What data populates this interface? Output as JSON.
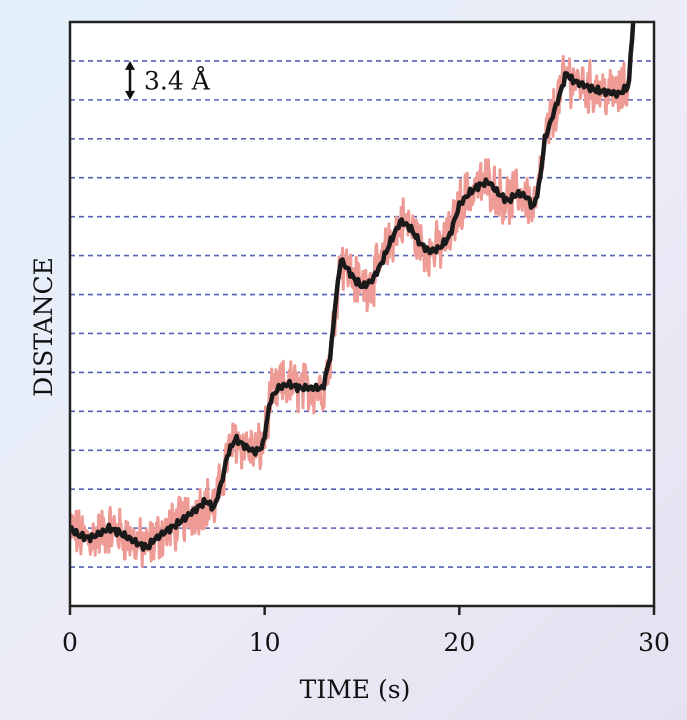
{
  "chart_data": {
    "type": "line",
    "title": "",
    "xlabel": "TIME (s)",
    "ylabel": "DISTANCE",
    "xlim": [
      0,
      30
    ],
    "xticks": [
      "0",
      "10",
      "20",
      "30"
    ],
    "ylim": [
      -1.0,
      14.0
    ],
    "y_tick_labels_shown": false,
    "grid": "horizontal dashed lines spaced one 3.4 Å step apart",
    "gridline_levels": [
      0,
      1,
      2,
      3,
      4,
      5,
      6,
      7,
      8,
      9,
      10,
      11,
      12,
      13
    ],
    "annotation": {
      "text": "3.4 Å",
      "spans_levels": [
        12,
        13
      ]
    },
    "legend": "none",
    "colors": {
      "raw": "#ef9b95",
      "filtered": "#1a1a1a",
      "grid": "#5562b8",
      "axes": "#222222"
    },
    "y_units": "base-pair steps (1 step = 3.4 Å)",
    "series": [
      {
        "color": "raw",
        "noise_amplitude": 0.55
      },
      {
        "color": "filtered",
        "x": [
          0,
          0.5,
          1.0,
          1.5,
          2.0,
          2.5,
          3.0,
          3.5,
          4.0,
          4.3,
          4.6,
          5.0,
          5.5,
          6.0,
          6.5,
          7.0,
          7.4,
          7.8,
          8.1,
          8.5,
          9.0,
          9.5,
          9.9,
          10.3,
          10.7,
          11.2,
          11.8,
          12.4,
          13.0,
          13.4,
          13.6,
          13.9,
          14.2,
          14.6,
          15.0,
          15.5,
          16.0,
          16.5,
          17.0,
          17.5,
          18.0,
          18.5,
          19.0,
          19.5,
          20.0,
          20.5,
          21.0,
          21.5,
          22.0,
          22.5,
          23.0,
          23.5,
          23.8,
          24.1,
          24.4,
          24.8,
          25.2,
          25.5,
          25.8,
          26.3,
          27.0,
          27.6,
          28.2,
          28.7,
          28.95
        ],
        "y": [
          1.0,
          0.8,
          0.75,
          0.85,
          1.0,
          0.9,
          0.75,
          0.6,
          0.5,
          0.7,
          0.8,
          0.95,
          1.1,
          1.3,
          1.5,
          1.7,
          1.5,
          2.2,
          2.9,
          3.3,
          3.1,
          2.95,
          3.1,
          4.3,
          4.6,
          4.7,
          4.6,
          4.6,
          4.6,
          5.5,
          6.6,
          7.9,
          7.7,
          7.4,
          7.2,
          7.35,
          7.8,
          8.4,
          8.9,
          8.7,
          8.3,
          8.1,
          8.2,
          8.5,
          9.3,
          9.6,
          9.8,
          9.9,
          9.6,
          9.4,
          9.6,
          9.5,
          9.2,
          9.8,
          11.0,
          11.6,
          12.2,
          12.7,
          12.5,
          12.4,
          12.25,
          12.2,
          12.15,
          12.35,
          14.2
        ]
      }
    ]
  }
}
